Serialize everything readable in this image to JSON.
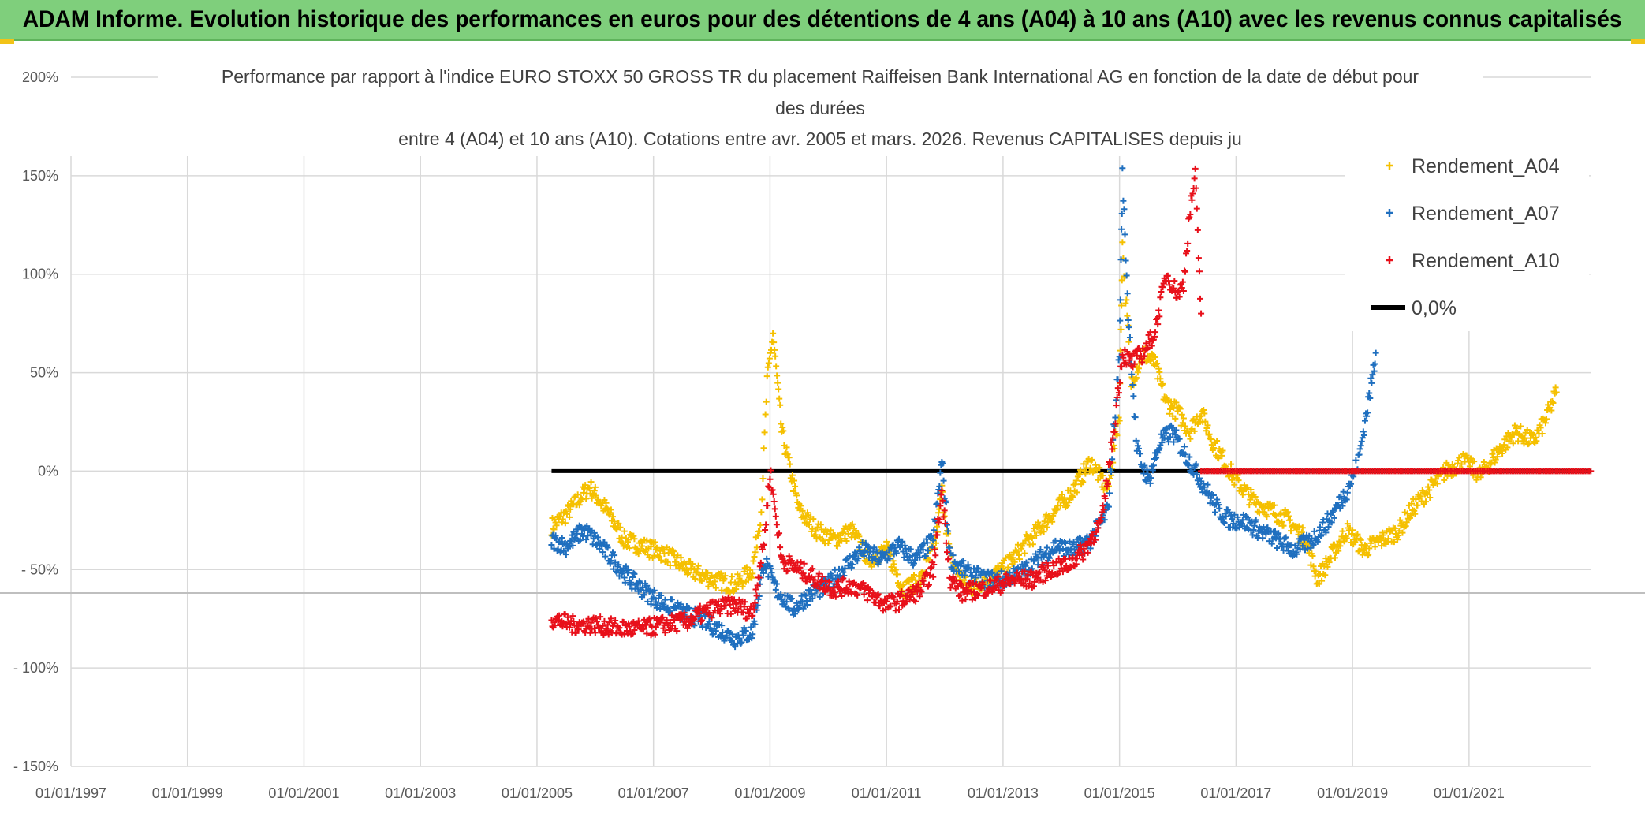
{
  "banner": {
    "title": "ADAM Informe. Evolution historique des performances en euros pour des détentions de 4 ans (A04) à 10 ans (A10) avec les revenus connus capitalisés"
  },
  "chart_data": {
    "type": "scatter",
    "title_lines": [
      "Performance par rapport à l'indice EURO STOXX 50 GROSS TR  du placement Raiffeisen Bank International AG en fonction de la date de début pour",
      "des durées",
      "entre 4 (A04) et 10 ans (A10). Cotations entre avr. 2005 et mars. 2026. Revenus CAPITALISES depuis ju"
    ],
    "x_tick_labels": [
      "01/01/1997",
      "01/01/1999",
      "01/01/2001",
      "01/01/2003",
      "01/01/2005",
      "01/01/2007",
      "01/01/2009",
      "01/01/2011",
      "01/01/2013",
      "01/01/2015",
      "01/01/2017",
      "01/01/2019",
      "01/01/2021"
    ],
    "x_range_years": [
      1997.0,
      2023.1
    ],
    "y_tick_labels": [
      "200%",
      "150%",
      "100%",
      "50%",
      "0%",
      "- 50%",
      "- 100%",
      "- 150%"
    ],
    "y_tick_values": [
      200,
      150,
      100,
      50,
      0,
      -50,
      -100,
      -150
    ],
    "ylim": [
      -150,
      200
    ],
    "legend": [
      {
        "name": "Rendement_A04",
        "color": "#f5c000",
        "marker": "+"
      },
      {
        "name": "Rendement_A07",
        "color": "#1f6fbf",
        "marker": "+"
      },
      {
        "name": "Rendement_A10",
        "color": "#e8101a",
        "marker": "+"
      },
      {
        "name": "0,0%",
        "color": "#000000",
        "marker": "line"
      }
    ],
    "series": [
      {
        "name": "Rendement_A04",
        "color": "#f5c000",
        "x": [
          2005.25,
          2005.5,
          2005.7,
          2005.9,
          2006.2,
          2006.5,
          2006.8,
          2007.2,
          2007.6,
          2008.0,
          2008.4,
          2008.7,
          2008.85,
          2008.95,
          2009.05,
          2009.2,
          2009.5,
          2009.8,
          2010.1,
          2010.4,
          2010.7,
          2011.0,
          2011.3,
          2011.6,
          2011.85,
          2011.95,
          2012.1,
          2012.4,
          2012.7,
          2013.0,
          2013.3,
          2013.6,
          2013.9,
          2014.2,
          2014.5,
          2014.8,
          2015.0,
          2015.05,
          2015.2,
          2015.4,
          2015.6,
          2015.8,
          2016.0,
          2016.2,
          2016.4,
          2016.6,
          2016.8,
          2017.0,
          2017.3,
          2017.6,
          2017.9,
          2018.2,
          2018.4,
          2018.6,
          2018.9,
          2019.2,
          2019.5,
          2019.8,
          2020.0,
          2020.3,
          2020.6,
          2020.9,
          2021.2,
          2021.5,
          2021.8,
          2022.1,
          2022.3,
          2022.5
        ],
        "y": [
          -28,
          -22,
          -15,
          -8,
          -20,
          -35,
          -38,
          -42,
          -50,
          -55,
          -58,
          -50,
          -20,
          45,
          70,
          20,
          -20,
          -30,
          -35,
          -30,
          -45,
          -40,
          -60,
          -55,
          -35,
          -10,
          -45,
          -60,
          -55,
          -50,
          -40,
          -30,
          -20,
          -10,
          5,
          -10,
          30,
          115,
          45,
          60,
          55,
          35,
          30,
          20,
          30,
          15,
          5,
          -5,
          -15,
          -20,
          -25,
          -35,
          -55,
          -45,
          -30,
          -40,
          -35,
          -30,
          -20,
          -10,
          0,
          5,
          -2,
          10,
          20,
          15,
          25,
          40
        ]
      },
      {
        "name": "Rendement_A07",
        "color": "#1f6fbf",
        "x": [
          2005.25,
          2005.5,
          2005.8,
          2006.0,
          2006.3,
          2006.6,
          2006.9,
          2007.2,
          2007.5,
          2007.8,
          2008.1,
          2008.4,
          2008.7,
          2008.9,
          2009.1,
          2009.4,
          2009.7,
          2010.0,
          2010.3,
          2010.6,
          2010.9,
          2011.2,
          2011.5,
          2011.8,
          2011.95,
          2012.1,
          2012.4,
          2012.7,
          2013.0,
          2013.3,
          2013.6,
          2013.9,
          2014.2,
          2014.5,
          2014.8,
          2015.0,
          2015.05,
          2015.15,
          2015.3,
          2015.5,
          2015.7,
          2015.9,
          2016.1,
          2016.3,
          2016.5,
          2016.7,
          2016.9,
          2017.1,
          2017.4,
          2017.7,
          2018.0,
          2018.3,
          2018.6,
          2018.9,
          2019.1,
          2019.3,
          2019.4
        ],
        "y": [
          -35,
          -38,
          -30,
          -35,
          -45,
          -55,
          -62,
          -68,
          -72,
          -75,
          -80,
          -85,
          -82,
          -45,
          -60,
          -70,
          -62,
          -58,
          -48,
          -40,
          -45,
          -38,
          -45,
          -35,
          5,
          -45,
          -52,
          -55,
          -55,
          -52,
          -45,
          -38,
          -40,
          -35,
          -20,
          60,
          150,
          80,
          10,
          -5,
          15,
          20,
          10,
          0,
          -10,
          -20,
          -25,
          -25,
          -30,
          -35,
          -40,
          -35,
          -25,
          -10,
          5,
          40,
          60
        ]
      },
      {
        "name": "Rendement_A10",
        "color": "#e8101a",
        "x": [
          2005.25,
          2005.6,
          2006.0,
          2006.4,
          2006.8,
          2007.2,
          2007.6,
          2008.0,
          2008.4,
          2008.7,
          2008.9,
          2009.0,
          2009.2,
          2009.5,
          2009.8,
          2010.1,
          2010.4,
          2010.7,
          2011.0,
          2011.3,
          2011.6,
          2011.8,
          2011.95,
          2012.1,
          2012.3,
          2012.6,
          2012.9,
          2013.2,
          2013.5,
          2013.8,
          2014.1,
          2014.4,
          2014.7,
          2014.9,
          2015.05,
          2015.2,
          2015.4,
          2015.6,
          2015.8,
          2016.0,
          2016.1,
          2016.2,
          2016.3,
          2016.4
        ],
        "y": [
          -75,
          -78,
          -78,
          -80,
          -80,
          -78,
          -76,
          -70,
          -68,
          -72,
          -35,
          0,
          -45,
          -50,
          -55,
          -60,
          -58,
          -62,
          -68,
          -65,
          -60,
          -50,
          -10,
          -55,
          -62,
          -60,
          -58,
          -55,
          -55,
          -50,
          -48,
          -40,
          -25,
          20,
          60,
          55,
          60,
          70,
          100,
          90,
          95,
          130,
          150,
          80
        ]
      },
      {
        "name": "0,0%",
        "color": "#000000",
        "x": [
          2005.25,
          2023.1
        ],
        "y": [
          0,
          0
        ]
      }
    ]
  }
}
